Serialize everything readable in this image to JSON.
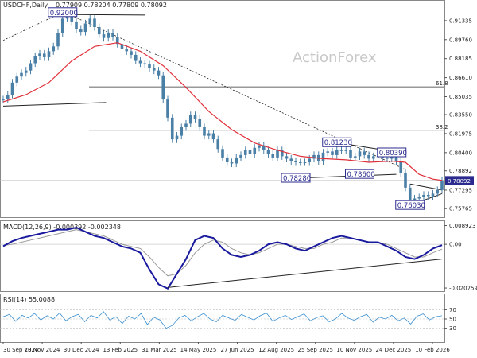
{
  "header": {
    "symbol": "USDCHF,Daily",
    "ohlc": "0.77909 0.78204 0.77809 0.78092"
  },
  "watermark": "ActionForex",
  "colors": {
    "price": "#4a7fa6",
    "ma": "#e0303a",
    "trendline": "#222222",
    "label": "#2b2b8f",
    "macd": "#1a1a9e",
    "signal": "#999999",
    "rsi": "#3a8fd0"
  },
  "chart_data": [
    {
      "type": "line",
      "title": "USDCHF,Daily",
      "y_ticks": [
        "0.91335",
        "0.89760",
        "0.88185",
        "0.86610",
        "0.85035",
        "0.83550",
        "0.81975",
        "0.80400",
        "0.78892",
        "0.77295",
        "0.75765"
      ],
      "ylim": [
        0.7525,
        0.9225
      ],
      "current_price": "0.78092",
      "fib_levels": [
        {
          "label": "61.8",
          "value": 0.8585
        },
        {
          "label": "38.2",
          "value": 0.8225
        }
      ],
      "annotations": [
        {
          "text": "0.92000",
          "x": 13,
          "y": 0.92
        },
        {
          "text": "0.81230",
          "x": 73,
          "y": 0.8123
        },
        {
          "text": "0.80390",
          "x": 85,
          "y": 0.8039
        },
        {
          "text": "0.78280",
          "x": 64,
          "y": 0.7828
        },
        {
          "text": "0.78600",
          "x": 78,
          "y": 0.786
        },
        {
          "text": "0.76030",
          "x": 89,
          "y": 0.7603
        }
      ],
      "series": [
        {
          "name": "price",
          "x": [
            0,
            1,
            2,
            3,
            4,
            5,
            6,
            7,
            8,
            9,
            10,
            11,
            12,
            13,
            14,
            15,
            16,
            17,
            18,
            19,
            20,
            21,
            22,
            23,
            24,
            25,
            26,
            27,
            28,
            29,
            30,
            31,
            32,
            33,
            34,
            35,
            36,
            37,
            38,
            39,
            40,
            41,
            42,
            43,
            44,
            45,
            46,
            47,
            48,
            49,
            50,
            51,
            52,
            53,
            54,
            55,
            56,
            57,
            58,
            59,
            60,
            61,
            62,
            63,
            64,
            65,
            66,
            67,
            68,
            69,
            70,
            71,
            72,
            73,
            74,
            75,
            76,
            77,
            78,
            79,
            80,
            81,
            82,
            83,
            84,
            85,
            86,
            87,
            88,
            89,
            90,
            91,
            92,
            93,
            94,
            95,
            96
          ],
          "values": [
            0.848,
            0.852,
            0.862,
            0.867,
            0.87,
            0.872,
            0.878,
            0.884,
            0.886,
            0.883,
            0.888,
            0.892,
            0.903,
            0.915,
            0.918,
            0.912,
            0.906,
            0.904,
            0.911,
            0.915,
            0.908,
            0.902,
            0.899,
            0.903,
            0.9,
            0.894,
            0.89,
            0.888,
            0.885,
            0.88,
            0.878,
            0.877,
            0.874,
            0.872,
            0.868,
            0.848,
            0.833,
            0.815,
            0.818,
            0.825,
            0.828,
            0.835,
            0.832,
            0.825,
            0.818,
            0.82,
            0.815,
            0.807,
            0.8,
            0.796,
            0.795,
            0.8,
            0.802,
            0.806,
            0.803,
            0.808,
            0.81,
            0.806,
            0.803,
            0.8,
            0.806,
            0.801,
            0.799,
            0.797,
            0.796,
            0.796,
            0.796,
            0.799,
            0.802,
            0.797,
            0.804,
            0.805,
            0.802,
            0.806,
            0.806,
            0.806,
            0.8,
            0.801,
            0.805,
            0.802,
            0.799,
            0.801,
            0.801,
            0.8,
            0.799,
            0.803,
            0.797,
            0.787,
            0.775,
            0.764,
            0.766,
            0.767,
            0.769,
            0.768,
            0.77,
            0.773,
            0.781
          ]
        },
        {
          "name": "ma",
          "x": [
            0,
            5,
            10,
            15,
            20,
            25,
            30,
            35,
            40,
            45,
            50,
            55,
            60,
            65,
            70,
            75,
            80,
            85,
            88,
            91,
            94,
            96
          ],
          "values": [
            0.846,
            0.852,
            0.862,
            0.88,
            0.892,
            0.895,
            0.888,
            0.876,
            0.858,
            0.838,
            0.823,
            0.812,
            0.806,
            0.801,
            0.799,
            0.798,
            0.796,
            0.797,
            0.796,
            0.786,
            0.782,
            0.781
          ]
        }
      ]
    },
    {
      "type": "line",
      "title": "MACD(12,26,9) -0.000392 -0.002348",
      "y_ticks": [
        "0.008923",
        "0.00",
        "-0.020759"
      ],
      "ylim": [
        -0.0215,
        0.0095
      ],
      "series": [
        {
          "name": "macd",
          "values": [
            -0.0009,
            0.0015,
            0.003,
            0.004,
            0.005,
            0.006,
            0.007,
            0.007,
            0.008,
            0.006,
            0.004,
            0.003,
            0.001,
            -0.001,
            -0.002,
            -0.004,
            -0.012,
            -0.019,
            -0.021,
            -0.014,
            -0.007,
            0.002,
            0.004,
            0.003,
            -0.002,
            -0.005,
            -0.006,
            -0.005,
            -0.003,
            0.0,
            0.001,
            0.0,
            -0.002,
            -0.003,
            -0.001,
            0.001,
            0.003,
            0.004,
            0.003,
            0.002,
            0.001,
            0.001,
            -0.001,
            -0.003,
            -0.006,
            -0.007,
            -0.005,
            -0.002,
            -0.0004
          ]
        },
        {
          "name": "signal",
          "values": [
            -0.0005,
            0.0,
            0.001,
            0.002,
            0.003,
            0.004,
            0.005,
            0.006,
            0.007,
            0.006,
            0.005,
            0.004,
            0.002,
            0.0,
            -0.001,
            -0.002,
            -0.006,
            -0.011,
            -0.015,
            -0.014,
            -0.01,
            -0.004,
            0.0,
            0.002,
            0.001,
            -0.002,
            -0.004,
            -0.005,
            -0.004,
            -0.002,
            0.0,
            0.0,
            -0.001,
            -0.002,
            -0.002,
            0.0,
            0.001,
            0.003,
            0.003,
            0.002,
            0.001,
            0.001,
            0.0,
            -0.002,
            -0.004,
            -0.006,
            -0.006,
            -0.004,
            -0.0023
          ]
        }
      ]
    },
    {
      "type": "line",
      "title": "RSI(14) 55.0088",
      "y_ticks": [
        "70",
        "50",
        "30"
      ],
      "ylim": [
        0,
        100
      ],
      "series": [
        {
          "name": "rsi",
          "values": [
            55,
            60,
            45,
            58,
            52,
            62,
            48,
            57,
            50,
            63,
            46,
            55,
            60,
            44,
            58,
            52,
            66,
            48,
            55,
            40,
            56,
            50,
            62,
            38,
            54,
            48,
            30,
            36,
            52,
            58,
            46,
            55,
            62,
            50,
            44,
            58,
            52,
            47,
            60,
            54,
            48,
            57,
            63,
            45,
            52,
            58,
            49,
            55,
            61,
            46,
            53,
            57,
            44,
            50,
            62,
            52,
            47,
            55,
            60,
            43,
            54,
            50,
            58,
            46,
            52,
            39,
            56,
            61,
            48,
            55,
            57
          ]
        }
      ]
    }
  ],
  "x_labels": [
    "30 Sep 2024",
    "13 Nov 2024",
    "30 Dec 2024",
    "13 Feb 2025",
    "31 Mar 2025",
    "14 May 2025",
    "27 Jun 2025",
    "12 Aug 2025",
    "25 Sep 2025",
    "10 Nov 2025",
    "24 Dec 2025",
    "10 Feb 2026"
  ]
}
